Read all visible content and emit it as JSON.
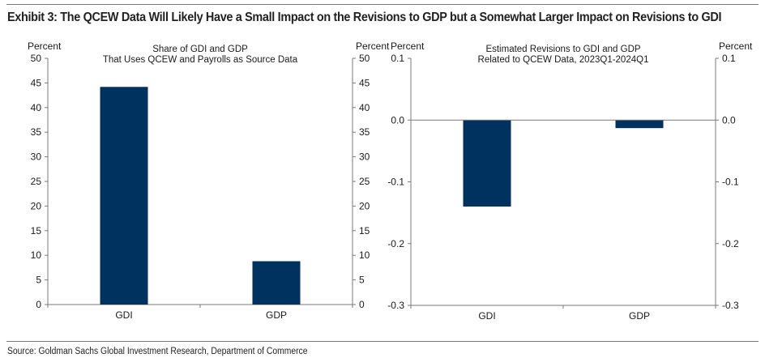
{
  "exhibit": {
    "title": "Exhibit 3: The QCEW Data Will Likely Have a Small Impact on the Revisions to GDP but a Somewhat Larger Impact on Revisions to GDI",
    "source": "Source: Goldman Sachs Global Investment Research, Department of Commerce"
  },
  "colors": {
    "bar": "#00325f",
    "axis": "#7a7a7a",
    "rule": "#7a7a7a"
  },
  "chart_data": [
    {
      "type": "bar",
      "title_lines": [
        "Share of GDI and GDP",
        "That Uses QCEW and Payrolls as Source Data"
      ],
      "categories": [
        "GDI",
        "GDP"
      ],
      "values": [
        44.2,
        8.8
      ],
      "ylabel_left": "Percent",
      "ylabel_right": "Percent",
      "ylim": [
        0,
        50
      ],
      "yticks": [
        0,
        5,
        10,
        15,
        20,
        25,
        30,
        35,
        40,
        45,
        50
      ],
      "ytick_labels": [
        "0",
        "5",
        "10",
        "15",
        "20",
        "25",
        "30",
        "35",
        "40",
        "45",
        "50"
      ],
      "grid": false,
      "legend": "none"
    },
    {
      "type": "bar",
      "title_lines": [
        "Estimated Revisions to GDI and GDP",
        "Related to QCEW Data, 2023Q1-2024Q1"
      ],
      "categories": [
        "GDI",
        "GDP"
      ],
      "values": [
        -0.14,
        -0.013
      ],
      "ylabel_left": "Percent",
      "ylabel_right": "Percent",
      "ylim": [
        -0.3,
        0.1
      ],
      "yticks": [
        -0.3,
        -0.2,
        -0.1,
        0.0,
        0.1
      ],
      "ytick_labels": [
        "-0.3",
        "-0.2",
        "-0.1",
        "0.0",
        "0.1"
      ],
      "grid": false,
      "legend": "none"
    }
  ]
}
